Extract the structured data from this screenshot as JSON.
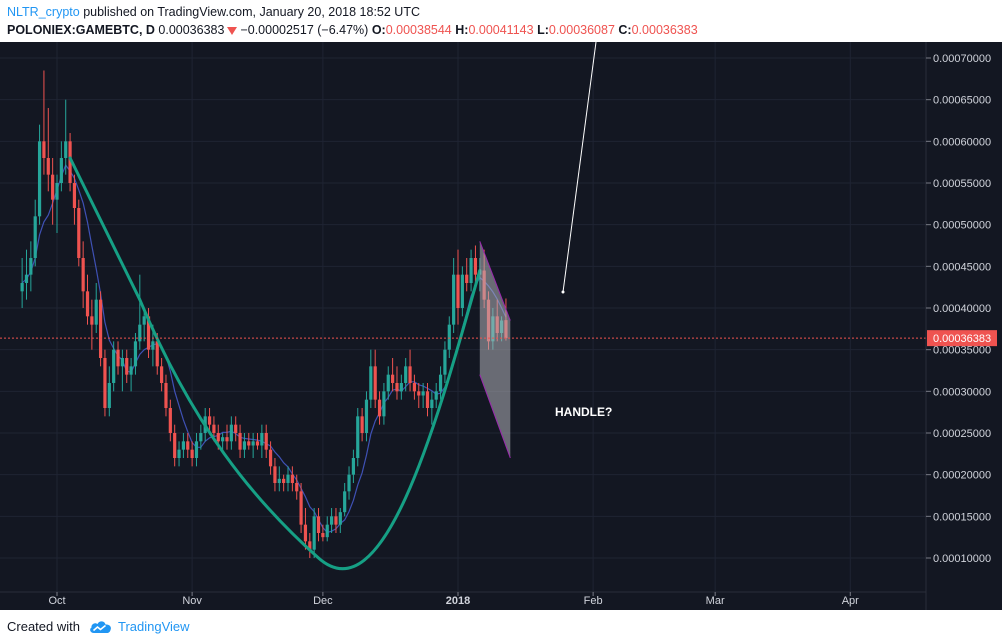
{
  "header": {
    "author": "NLTR_crypto",
    "published_text": "published on TradingView.com, January 20, 2018 18:52 UTC",
    "symbol": "POLONIEX:GAMEBTC, D",
    "last": "0.00036383",
    "change": "−0.00002517 (−6.47%)",
    "o_label": "O:",
    "o_value": "0.00038544",
    "h_label": "H:",
    "h_value": "0.00041143",
    "l_label": "L:",
    "l_value": "0.00036087",
    "c_label": "C:",
    "c_value": "0.00036383"
  },
  "footer": {
    "created_with": "Created with",
    "brand": "TradingView"
  },
  "colors": {
    "background": "#131722",
    "up": "#26a69a",
    "down": "#ef5350",
    "ma": "#3f51b5",
    "cup": "#16a085",
    "handle_fill": "#b0b0b8",
    "handle_stroke": "#9c27b0",
    "price_line": "#ef5350"
  },
  "chart_data": {
    "type": "candlestick",
    "ylim": [
      6e-05,
      0.00075
    ],
    "y_ticks": [
      "0.00010000",
      "0.00015000",
      "0.00020000",
      "0.00025000",
      "0.00030000",
      "0.00035000",
      "0.00040000",
      "0.00045000",
      "0.00050000",
      "0.00055000",
      "0.00060000",
      "0.00065000",
      "0.00070000"
    ],
    "x_ticks": [
      {
        "label": "Oct",
        "date": "2017-10-01"
      },
      {
        "label": "Nov",
        "date": "2017-11-01"
      },
      {
        "label": "Dec",
        "date": "2017-12-01"
      },
      {
        "label": "2018",
        "date": "2018-01-01"
      },
      {
        "label": "Feb",
        "date": "2018-02-01"
      },
      {
        "label": "Mar",
        "date": "2018-03-01"
      },
      {
        "label": "Apr",
        "date": "2018-04-01"
      }
    ],
    "last_price": 0.00036383,
    "last_price_label": "0.00036383",
    "annotation_text": "HANDLE?",
    "ohlc": [
      {
        "d": "2017-09-23",
        "o": 0.00042,
        "h": 0.00046,
        "l": 0.0004,
        "c": 0.00043
      },
      {
        "d": "2017-09-24",
        "o": 0.00043,
        "h": 0.00047,
        "l": 0.00041,
        "c": 0.00044
      },
      {
        "d": "2017-09-25",
        "o": 0.00044,
        "h": 0.00048,
        "l": 0.00042,
        "c": 0.00046
      },
      {
        "d": "2017-09-26",
        "o": 0.00046,
        "h": 0.00053,
        "l": 0.00045,
        "c": 0.00051
      },
      {
        "d": "2017-09-27",
        "o": 0.00051,
        "h": 0.00062,
        "l": 0.0005,
        "c": 0.0006
      },
      {
        "d": "2017-09-28",
        "o": 0.0006,
        "h": 0.000685,
        "l": 0.00056,
        "c": 0.00058
      },
      {
        "d": "2017-09-29",
        "o": 0.00058,
        "h": 0.00064,
        "l": 0.00054,
        "c": 0.00056
      },
      {
        "d": "2017-09-30",
        "o": 0.00056,
        "h": 0.00058,
        "l": 0.0005,
        "c": 0.00053
      },
      {
        "d": "2017-10-01",
        "o": 0.00053,
        "h": 0.00056,
        "l": 0.00049,
        "c": 0.00055
      },
      {
        "d": "2017-10-02",
        "o": 0.00055,
        "h": 0.0006,
        "l": 0.00054,
        "c": 0.00058
      },
      {
        "d": "2017-10-03",
        "o": 0.00058,
        "h": 0.00065,
        "l": 0.00056,
        "c": 0.0006
      },
      {
        "d": "2017-10-04",
        "o": 0.0006,
        "h": 0.00061,
        "l": 0.00054,
        "c": 0.00055
      },
      {
        "d": "2017-10-05",
        "o": 0.00055,
        "h": 0.00056,
        "l": 0.0005,
        "c": 0.00052
      },
      {
        "d": "2017-10-06",
        "o": 0.00052,
        "h": 0.00053,
        "l": 0.00045,
        "c": 0.00046
      },
      {
        "d": "2017-10-07",
        "o": 0.00046,
        "h": 0.00048,
        "l": 0.0004,
        "c": 0.00042
      },
      {
        "d": "2017-10-08",
        "o": 0.00042,
        "h": 0.00044,
        "l": 0.00038,
        "c": 0.00039
      },
      {
        "d": "2017-10-09",
        "o": 0.00039,
        "h": 0.00041,
        "l": 0.00035,
        "c": 0.00038
      },
      {
        "d": "2017-10-10",
        "o": 0.00038,
        "h": 0.00043,
        "l": 0.00037,
        "c": 0.00041
      },
      {
        "d": "2017-10-11",
        "o": 0.00041,
        "h": 0.00042,
        "l": 0.00033,
        "c": 0.00034
      },
      {
        "d": "2017-10-12",
        "o": 0.00034,
        "h": 0.00035,
        "l": 0.00027,
        "c": 0.00028
      },
      {
        "d": "2017-10-13",
        "o": 0.00028,
        "h": 0.00033,
        "l": 0.00027,
        "c": 0.00031
      },
      {
        "d": "2017-10-14",
        "o": 0.00031,
        "h": 0.00036,
        "l": 0.0003,
        "c": 0.00035
      },
      {
        "d": "2017-10-15",
        "o": 0.00035,
        "h": 0.00036,
        "l": 0.00032,
        "c": 0.00033
      },
      {
        "d": "2017-10-16",
        "o": 0.00033,
        "h": 0.00035,
        "l": 0.0003,
        "c": 0.00034
      },
      {
        "d": "2017-10-17",
        "o": 0.00034,
        "h": 0.00035,
        "l": 0.00031,
        "c": 0.00032
      },
      {
        "d": "2017-10-18",
        "o": 0.00032,
        "h": 0.00034,
        "l": 0.0003,
        "c": 0.00033
      },
      {
        "d": "2017-10-19",
        "o": 0.00033,
        "h": 0.00037,
        "l": 0.00032,
        "c": 0.00036
      },
      {
        "d": "2017-10-20",
        "o": 0.00036,
        "h": 0.00044,
        "l": 0.00035,
        "c": 0.00038
      },
      {
        "d": "2017-10-21",
        "o": 0.00038,
        "h": 0.0004,
        "l": 0.00036,
        "c": 0.00039
      },
      {
        "d": "2017-10-22",
        "o": 0.00039,
        "h": 0.0004,
        "l": 0.00034,
        "c": 0.00035
      },
      {
        "d": "2017-10-23",
        "o": 0.00035,
        "h": 0.00038,
        "l": 0.00033,
        "c": 0.00036
      },
      {
        "d": "2017-10-24",
        "o": 0.00036,
        "h": 0.00037,
        "l": 0.00032,
        "c": 0.00033
      },
      {
        "d": "2017-10-25",
        "o": 0.00033,
        "h": 0.00034,
        "l": 0.0003,
        "c": 0.00031
      },
      {
        "d": "2017-10-26",
        "o": 0.00031,
        "h": 0.00032,
        "l": 0.00027,
        "c": 0.00028
      },
      {
        "d": "2017-10-27",
        "o": 0.00028,
        "h": 0.00029,
        "l": 0.00024,
        "c": 0.00025
      },
      {
        "d": "2017-10-28",
        "o": 0.00025,
        "h": 0.00026,
        "l": 0.00021,
        "c": 0.00022
      },
      {
        "d": "2017-10-29",
        "o": 0.00022,
        "h": 0.00024,
        "l": 0.00021,
        "c": 0.00023
      },
      {
        "d": "2017-10-30",
        "o": 0.00023,
        "h": 0.00025,
        "l": 0.00022,
        "c": 0.00024
      },
      {
        "d": "2017-10-31",
        "o": 0.00024,
        "h": 0.00025,
        "l": 0.00022,
        "c": 0.00023
      },
      {
        "d": "2017-11-01",
        "o": 0.00023,
        "h": 0.00024,
        "l": 0.00021,
        "c": 0.00022
      },
      {
        "d": "2017-11-02",
        "o": 0.00022,
        "h": 0.00025,
        "l": 0.00021,
        "c": 0.00024
      },
      {
        "d": "2017-11-03",
        "o": 0.00024,
        "h": 0.00026,
        "l": 0.00023,
        "c": 0.00025
      },
      {
        "d": "2017-11-04",
        "o": 0.00025,
        "h": 0.00028,
        "l": 0.00024,
        "c": 0.00027
      },
      {
        "d": "2017-11-05",
        "o": 0.00027,
        "h": 0.00028,
        "l": 0.00025,
        "c": 0.00026
      },
      {
        "d": "2017-11-06",
        "o": 0.00026,
        "h": 0.00027,
        "l": 0.00024,
        "c": 0.00025
      },
      {
        "d": "2017-11-07",
        "o": 0.00025,
        "h": 0.00026,
        "l": 0.00023,
        "c": 0.00024
      },
      {
        "d": "2017-11-08",
        "o": 0.00024,
        "h": 0.00025,
        "l": 0.00023,
        "c": 0.000245
      },
      {
        "d": "2017-11-09",
        "o": 0.000245,
        "h": 0.00026,
        "l": 0.00023,
        "c": 0.00024
      },
      {
        "d": "2017-11-10",
        "o": 0.00024,
        "h": 0.00027,
        "l": 0.00023,
        "c": 0.00026
      },
      {
        "d": "2017-11-11",
        "o": 0.00026,
        "h": 0.00027,
        "l": 0.00024,
        "c": 0.00025
      },
      {
        "d": "2017-11-12",
        "o": 0.00025,
        "h": 0.00026,
        "l": 0.00022,
        "c": 0.00023
      },
      {
        "d": "2017-11-13",
        "o": 0.00023,
        "h": 0.00025,
        "l": 0.00022,
        "c": 0.00024
      },
      {
        "d": "2017-11-14",
        "o": 0.00024,
        "h": 0.00025,
        "l": 0.00023,
        "c": 0.000235
      },
      {
        "d": "2017-11-15",
        "o": 0.000235,
        "h": 0.00025,
        "l": 0.00022,
        "c": 0.00024
      },
      {
        "d": "2017-11-16",
        "o": 0.00024,
        "h": 0.00025,
        "l": 0.00023,
        "c": 0.000235
      },
      {
        "d": "2017-11-17",
        "o": 0.000235,
        "h": 0.00026,
        "l": 0.00022,
        "c": 0.00025
      },
      {
        "d": "2017-11-18",
        "o": 0.00025,
        "h": 0.00026,
        "l": 0.00022,
        "c": 0.00023
      },
      {
        "d": "2017-11-19",
        "o": 0.00023,
        "h": 0.00024,
        "l": 0.0002,
        "c": 0.00021
      },
      {
        "d": "2017-11-20",
        "o": 0.00021,
        "h": 0.00022,
        "l": 0.00018,
        "c": 0.00019
      },
      {
        "d": "2017-11-21",
        "o": 0.00019,
        "h": 0.00021,
        "l": 0.00018,
        "c": 0.000195
      },
      {
        "d": "2017-11-22",
        "o": 0.000195,
        "h": 0.0002,
        "l": 0.00018,
        "c": 0.00019
      },
      {
        "d": "2017-11-23",
        "o": 0.00019,
        "h": 0.00021,
        "l": 0.00018,
        "c": 0.0002
      },
      {
        "d": "2017-11-24",
        "o": 0.0002,
        "h": 0.00021,
        "l": 0.00018,
        "c": 0.00019
      },
      {
        "d": "2017-11-25",
        "o": 0.00019,
        "h": 0.0002,
        "l": 0.00017,
        "c": 0.00018
      },
      {
        "d": "2017-11-26",
        "o": 0.00018,
        "h": 0.00019,
        "l": 0.00013,
        "c": 0.00014
      },
      {
        "d": "2017-11-27",
        "o": 0.00014,
        "h": 0.00016,
        "l": 0.00011,
        "c": 0.00012
      },
      {
        "d": "2017-11-28",
        "o": 0.00012,
        "h": 0.00013,
        "l": 0.0001,
        "c": 0.00011
      },
      {
        "d": "2017-11-29",
        "o": 0.00011,
        "h": 0.00016,
        "l": 0.0001,
        "c": 0.00015
      },
      {
        "d": "2017-11-30",
        "o": 0.00015,
        "h": 0.00016,
        "l": 0.00012,
        "c": 0.00013
      },
      {
        "d": "2017-12-01",
        "o": 0.00013,
        "h": 0.00014,
        "l": 0.00012,
        "c": 0.000125
      },
      {
        "d": "2017-12-02",
        "o": 0.000125,
        "h": 0.00015,
        "l": 0.00012,
        "c": 0.00014
      },
      {
        "d": "2017-12-03",
        "o": 0.00014,
        "h": 0.00016,
        "l": 0.00013,
        "c": 0.00015
      },
      {
        "d": "2017-12-04",
        "o": 0.00015,
        "h": 0.00016,
        "l": 0.00013,
        "c": 0.00014
      },
      {
        "d": "2017-12-05",
        "o": 0.00014,
        "h": 0.00016,
        "l": 0.00013,
        "c": 0.000155
      },
      {
        "d": "2017-12-06",
        "o": 0.000155,
        "h": 0.00019,
        "l": 0.00015,
        "c": 0.00018
      },
      {
        "d": "2017-12-07",
        "o": 0.00018,
        "h": 0.00021,
        "l": 0.00017,
        "c": 0.0002
      },
      {
        "d": "2017-12-08",
        "o": 0.0002,
        "h": 0.00023,
        "l": 0.00019,
        "c": 0.00022
      },
      {
        "d": "2017-12-09",
        "o": 0.00022,
        "h": 0.00028,
        "l": 0.00021,
        "c": 0.00027
      },
      {
        "d": "2017-12-10",
        "o": 0.00027,
        "h": 0.00028,
        "l": 0.00024,
        "c": 0.00025
      },
      {
        "d": "2017-12-11",
        "o": 0.00025,
        "h": 0.0003,
        "l": 0.00024,
        "c": 0.00029
      },
      {
        "d": "2017-12-12",
        "o": 0.00029,
        "h": 0.00035,
        "l": 0.00028,
        "c": 0.00033
      },
      {
        "d": "2017-12-13",
        "o": 0.00033,
        "h": 0.00035,
        "l": 0.00028,
        "c": 0.00029
      },
      {
        "d": "2017-12-14",
        "o": 0.00029,
        "h": 0.0003,
        "l": 0.00026,
        "c": 0.00027
      },
      {
        "d": "2017-12-15",
        "o": 0.00027,
        "h": 0.00031,
        "l": 0.00026,
        "c": 0.0003
      },
      {
        "d": "2017-12-16",
        "o": 0.0003,
        "h": 0.00033,
        "l": 0.00029,
        "c": 0.00032
      },
      {
        "d": "2017-12-17",
        "o": 0.00032,
        "h": 0.00034,
        "l": 0.0003,
        "c": 0.00031
      },
      {
        "d": "2017-12-18",
        "o": 0.00031,
        "h": 0.00033,
        "l": 0.00029,
        "c": 0.0003
      },
      {
        "d": "2017-12-19",
        "o": 0.0003,
        "h": 0.00032,
        "l": 0.00029,
        "c": 0.00031
      },
      {
        "d": "2017-12-20",
        "o": 0.00031,
        "h": 0.00034,
        "l": 0.0003,
        "c": 0.00033
      },
      {
        "d": "2017-12-21",
        "o": 0.00033,
        "h": 0.00035,
        "l": 0.0003,
        "c": 0.00031
      },
      {
        "d": "2017-12-22",
        "o": 0.00031,
        "h": 0.00032,
        "l": 0.00029,
        "c": 0.0003
      },
      {
        "d": "2017-12-23",
        "o": 0.0003,
        "h": 0.00031,
        "l": 0.00028,
        "c": 0.000295
      },
      {
        "d": "2017-12-24",
        "o": 0.000295,
        "h": 0.00031,
        "l": 0.00028,
        "c": 0.0003
      },
      {
        "d": "2017-12-25",
        "o": 0.0003,
        "h": 0.00031,
        "l": 0.00027,
        "c": 0.00028
      },
      {
        "d": "2017-12-26",
        "o": 0.00028,
        "h": 0.0003,
        "l": 0.00026,
        "c": 0.00029
      },
      {
        "d": "2017-12-27",
        "o": 0.00029,
        "h": 0.00031,
        "l": 0.00028,
        "c": 0.0003
      },
      {
        "d": "2017-12-28",
        "o": 0.0003,
        "h": 0.00033,
        "l": 0.00029,
        "c": 0.00032
      },
      {
        "d": "2017-12-29",
        "o": 0.00032,
        "h": 0.00036,
        "l": 0.00031,
        "c": 0.00035
      },
      {
        "d": "2017-12-30",
        "o": 0.00035,
        "h": 0.00039,
        "l": 0.00034,
        "c": 0.00038
      },
      {
        "d": "2017-12-31",
        "o": 0.00038,
        "h": 0.00046,
        "l": 0.00037,
        "c": 0.00044
      },
      {
        "d": "2018-01-01",
        "o": 0.00044,
        "h": 0.00047,
        "l": 0.00038,
        "c": 0.0004
      },
      {
        "d": "2018-01-02",
        "o": 0.0004,
        "h": 0.00045,
        "l": 0.00039,
        "c": 0.00044
      },
      {
        "d": "2018-01-03",
        "o": 0.00044,
        "h": 0.00046,
        "l": 0.00042,
        "c": 0.00043
      },
      {
        "d": "2018-01-04",
        "o": 0.00043,
        "h": 0.00047,
        "l": 0.00042,
        "c": 0.00046
      },
      {
        "d": "2018-01-05",
        "o": 0.00046,
        "h": 0.000475,
        "l": 0.00043,
        "c": 0.00044
      },
      {
        "d": "2018-01-06",
        "o": 0.00044,
        "h": 0.00046,
        "l": 0.00042,
        "c": 0.000445
      },
      {
        "d": "2018-01-07",
        "o": 0.000445,
        "h": 0.00047,
        "l": 0.0004,
        "c": 0.00041
      },
      {
        "d": "2018-01-08",
        "o": 0.00041,
        "h": 0.00042,
        "l": 0.00035,
        "c": 0.00036
      },
      {
        "d": "2018-01-09",
        "o": 0.00036,
        "h": 0.0004,
        "l": 0.00035,
        "c": 0.00039
      },
      {
        "d": "2018-01-10",
        "o": 0.00039,
        "h": 0.00041,
        "l": 0.00036,
        "c": 0.00037
      },
      {
        "d": "2018-01-11",
        "o": 0.00037,
        "h": 0.00039,
        "l": 0.00036,
        "c": 0.000385
      },
      {
        "d": "2018-01-12",
        "o": 0.00038544,
        "h": 0.00041143,
        "l": 0.00036087,
        "c": 0.00036383
      }
    ]
  }
}
